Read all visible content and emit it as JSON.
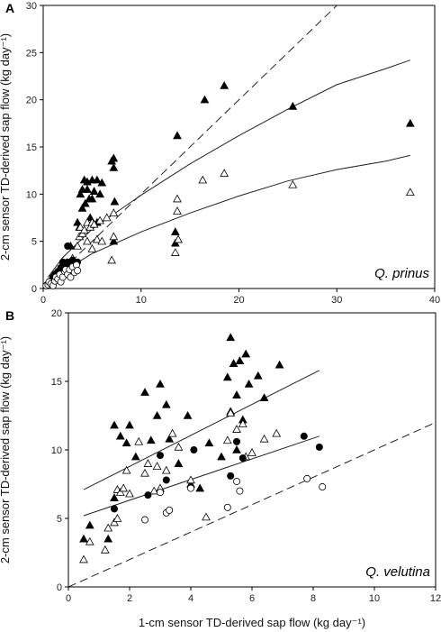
{
  "chart_data": [
    {
      "type": "scatter",
      "panel_label": "A",
      "species": "Q. prinus",
      "xlabel": "",
      "ylabel": "2-cm sensor TD-derived sap flow (kg day⁻¹)",
      "xlim": [
        0,
        40
      ],
      "ylim": [
        0,
        30
      ],
      "xticks": [
        0,
        10,
        20,
        30,
        40
      ],
      "yticks": [
        0,
        5,
        10,
        15,
        20,
        25,
        30
      ],
      "grid": false,
      "series": [
        {
          "marker": "triangle-filled",
          "points": [
            [
              1.0,
              1.0
            ],
            [
              1.5,
              1.5
            ],
            [
              2.5,
              2.5
            ],
            [
              2.8,
              4.5
            ],
            [
              3.5,
              7.0
            ],
            [
              3.7,
              6.5
            ],
            [
              3.8,
              10.0
            ],
            [
              4.0,
              10.5
            ],
            [
              4.0,
              8.5
            ],
            [
              4.2,
              11.5
            ],
            [
              4.3,
              9.0
            ],
            [
              4.5,
              10.5
            ],
            [
              4.5,
              11.3
            ],
            [
              4.7,
              9.5
            ],
            [
              4.8,
              7.5
            ],
            [
              5.0,
              11.5
            ],
            [
              5.0,
              9.5
            ],
            [
              5.2,
              10.3
            ],
            [
              5.5,
              11.5
            ],
            [
              5.5,
              7.0
            ],
            [
              5.8,
              10.0
            ],
            [
              6.0,
              11.2
            ],
            [
              7.0,
              13.5
            ],
            [
              7.2,
              13.8
            ],
            [
              7.2,
              12.8
            ],
            [
              7.2,
              5.0
            ],
            [
              7.3,
              9.2
            ],
            [
              13.5,
              6.0
            ],
            [
              13.7,
              16.2
            ],
            [
              13.5,
              4.8
            ],
            [
              16.5,
              20.0
            ],
            [
              18.5,
              21.5
            ],
            [
              25.5,
              19.3
            ],
            [
              37.5,
              17.5
            ]
          ]
        },
        {
          "marker": "triangle-open",
          "points": [
            [
              0.5,
              0.5
            ],
            [
              1.2,
              1.0
            ],
            [
              2.0,
              1.5
            ],
            [
              2.8,
              2.5
            ],
            [
              3.0,
              3.2
            ],
            [
              3.5,
              4.5
            ],
            [
              3.7,
              5.5
            ],
            [
              3.8,
              6.5
            ],
            [
              4.0,
              5.8
            ],
            [
              4.2,
              6.2
            ],
            [
              4.5,
              7.0
            ],
            [
              4.5,
              5.0
            ],
            [
              4.8,
              6.5
            ],
            [
              5.0,
              7.0
            ],
            [
              5.0,
              4.2
            ],
            [
              5.2,
              6.8
            ],
            [
              5.5,
              5.2
            ],
            [
              5.8,
              7.2
            ],
            [
              6.0,
              5.0
            ],
            [
              6.5,
              7.5
            ],
            [
              7.0,
              3.0
            ],
            [
              7.2,
              5.5
            ],
            [
              7.2,
              8.0
            ],
            [
              13.5,
              3.8
            ],
            [
              13.7,
              9.5
            ],
            [
              13.8,
              5.2
            ],
            [
              13.7,
              8.2
            ],
            [
              16.3,
              11.5
            ],
            [
              18.5,
              12.2
            ],
            [
              25.5,
              11.0
            ],
            [
              37.5,
              10.2
            ]
          ]
        },
        {
          "marker": "circle-filled",
          "points": [
            [
              0.5,
              0.5
            ],
            [
              0.8,
              0.8
            ],
            [
              1.0,
              1.2
            ],
            [
              1.2,
              1.5
            ],
            [
              1.5,
              1.8
            ],
            [
              1.8,
              2.2
            ],
            [
              2.0,
              2.8
            ],
            [
              2.2,
              2.5
            ],
            [
              2.5,
              2.3
            ],
            [
              2.5,
              2.8
            ],
            [
              2.7,
              2.6
            ],
            [
              3.0,
              2.7
            ],
            [
              3.0,
              3.0
            ],
            [
              3.3,
              2.2
            ],
            [
              3.5,
              2.8
            ],
            [
              2.5,
              4.5
            ]
          ]
        },
        {
          "marker": "circle-open",
          "points": [
            [
              0.3,
              0.3
            ],
            [
              0.5,
              0.4
            ],
            [
              0.6,
              0.7
            ],
            [
              0.8,
              0.5
            ],
            [
              1.0,
              0.3
            ],
            [
              1.2,
              0.8
            ],
            [
              1.3,
              1.2
            ],
            [
              1.5,
              1.0
            ],
            [
              1.7,
              1.5
            ],
            [
              1.8,
              0.7
            ],
            [
              2.0,
              1.2
            ],
            [
              2.2,
              1.8
            ],
            [
              2.3,
              2.0
            ],
            [
              2.5,
              1.5
            ],
            [
              2.7,
              2.0
            ],
            [
              2.8,
              1.2
            ],
            [
              3.0,
              2.3
            ],
            [
              3.2,
              1.7
            ],
            [
              3.4,
              2.5
            ],
            [
              3.5,
              1.9
            ]
          ]
        }
      ],
      "curves": [
        {
          "style": "solid",
          "points": [
            [
              0.5,
              1.2
            ],
            [
              2,
              3.3
            ],
            [
              5,
              6.3
            ],
            [
              10,
              9.9
            ],
            [
              15,
              13.2
            ],
            [
              20,
              16.2
            ],
            [
              25,
              19.0
            ],
            [
              30,
              21.6
            ],
            [
              35,
              23.3
            ],
            [
              37.5,
              24.2
            ]
          ]
        },
        {
          "style": "solid",
          "points": [
            [
              0.5,
              0.6
            ],
            [
              2,
              1.8
            ],
            [
              5,
              3.7
            ],
            [
              10,
              6.0
            ],
            [
              15,
              8.0
            ],
            [
              20,
              9.8
            ],
            [
              25,
              11.4
            ],
            [
              30,
              12.6
            ],
            [
              35,
              13.5
            ],
            [
              37.5,
              14.1
            ]
          ]
        },
        {
          "style": "dashed",
          "points": [
            [
              0,
              0
            ],
            [
              30,
              30
            ]
          ]
        }
      ]
    },
    {
      "type": "scatter",
      "panel_label": "B",
      "species": "Q. velutina",
      "xlabel": "1-cm sensor TD-derived sap flow (kg day⁻¹)",
      "ylabel": "2-cm sensor TD-derived sap flow (kg day⁻¹)",
      "xlim": [
        0,
        12
      ],
      "ylim": [
        0,
        20
      ],
      "xticks": [
        0,
        2,
        4,
        6,
        8,
        10,
        12
      ],
      "yticks": [
        0,
        5,
        10,
        15,
        20
      ],
      "grid": false,
      "series": [
        {
          "marker": "triangle-filled",
          "points": [
            [
              0.5,
              3.5
            ],
            [
              0.7,
              4.5
            ],
            [
              1.3,
              3.5
            ],
            [
              1.5,
              6.5
            ],
            [
              1.5,
              11.8
            ],
            [
              1.7,
              11.0
            ],
            [
              1.9,
              10.5
            ],
            [
              2.0,
              11.8
            ],
            [
              2.2,
              9.5
            ],
            [
              2.5,
              14.2
            ],
            [
              2.7,
              10.7
            ],
            [
              2.9,
              12.5
            ],
            [
              3.0,
              14.8
            ],
            [
              3.2,
              13.3
            ],
            [
              3.3,
              10.8
            ],
            [
              3.6,
              9.0
            ],
            [
              3.9,
              12.5
            ],
            [
              4.0,
              7.5
            ],
            [
              4.3,
              7.2
            ],
            [
              4.6,
              10.5
            ],
            [
              5.0,
              9.5
            ],
            [
              5.2,
              15.3
            ],
            [
              5.3,
              18.2
            ],
            [
              5.3,
              12.8
            ],
            [
              5.4,
              16.3
            ],
            [
              5.5,
              14.0
            ],
            [
              5.5,
              10.0
            ],
            [
              5.6,
              16.5
            ],
            [
              5.7,
              12.2
            ],
            [
              5.8,
              17.0
            ],
            [
              5.9,
              14.8
            ],
            [
              6.2,
              15.4
            ],
            [
              6.4,
              13.8
            ],
            [
              6.9,
              16.2
            ]
          ]
        },
        {
          "marker": "triangle-open",
          "points": [
            [
              0.5,
              2.0
            ],
            [
              0.7,
              3.3
            ],
            [
              1.2,
              2.7
            ],
            [
              1.3,
              4.3
            ],
            [
              1.5,
              4.7
            ],
            [
              1.6,
              5.0
            ],
            [
              1.6,
              7.1
            ],
            [
              1.7,
              6.9
            ],
            [
              1.8,
              7.2
            ],
            [
              1.9,
              8.5
            ],
            [
              2.0,
              6.8
            ],
            [
              2.3,
              10.6
            ],
            [
              2.5,
              8.3
            ],
            [
              2.6,
              9.0
            ],
            [
              2.8,
              7.0
            ],
            [
              2.9,
              8.8
            ],
            [
              3.0,
              7.2
            ],
            [
              3.2,
              8.5
            ],
            [
              3.4,
              11.2
            ],
            [
              3.6,
              10.2
            ],
            [
              4.0,
              7.8
            ],
            [
              4.5,
              5.1
            ],
            [
              5.2,
              10.7
            ],
            [
              5.3,
              12.7
            ],
            [
              5.5,
              11.5
            ],
            [
              5.7,
              11.9
            ],
            [
              5.8,
              9.5
            ],
            [
              6.0,
              9.8
            ],
            [
              6.4,
              10.8
            ],
            [
              6.8,
              11.2
            ]
          ]
        },
        {
          "marker": "circle-filled",
          "points": [
            [
              1.5,
              5.7
            ],
            [
              2.6,
              6.7
            ],
            [
              3.0,
              9.6
            ],
            [
              3.2,
              7.8
            ],
            [
              4.1,
              10.0
            ],
            [
              5.3,
              8.1
            ],
            [
              5.5,
              10.6
            ],
            [
              5.7,
              9.4
            ],
            [
              7.7,
              11.0
            ],
            [
              8.2,
              10.2
            ]
          ]
        },
        {
          "marker": "circle-open",
          "points": [
            [
              2.5,
              4.9
            ],
            [
              3.0,
              6.9
            ],
            [
              3.2,
              5.4
            ],
            [
              3.3,
              5.6
            ],
            [
              4.0,
              7.2
            ],
            [
              5.2,
              5.8
            ],
            [
              5.5,
              7.7
            ],
            [
              5.6,
              7.0
            ],
            [
              7.8,
              7.9
            ],
            [
              8.3,
              7.3
            ]
          ]
        }
      ],
      "curves": [
        {
          "style": "solid",
          "points": [
            [
              0.5,
              7.1
            ],
            [
              8.2,
              15.8
            ]
          ]
        },
        {
          "style": "solid",
          "points": [
            [
              0.5,
              5.2
            ],
            [
              8.2,
              11.0
            ]
          ]
        },
        {
          "style": "dashed",
          "points": [
            [
              0,
              0
            ],
            [
              12,
              12
            ]
          ]
        }
      ]
    }
  ]
}
